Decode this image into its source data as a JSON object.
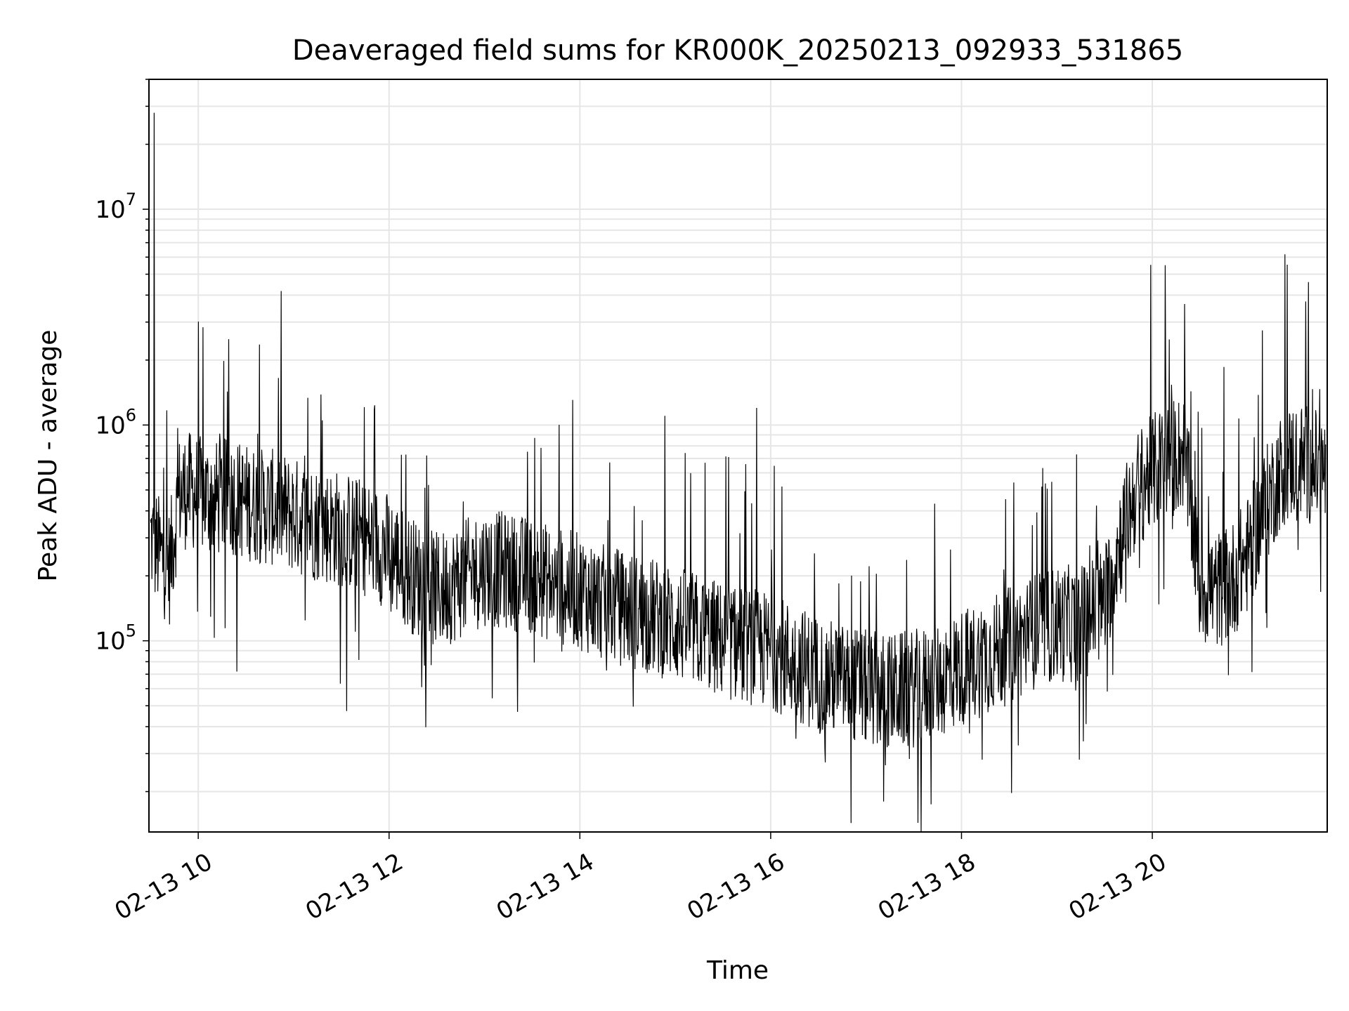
{
  "chart_data": {
    "type": "line",
    "title": "Deaveraged field sums for KR000K_20250213_092933_531865",
    "xlabel": "Time",
    "ylabel": "Peak ADU - average",
    "yscale": "log",
    "xlim": [
      "2025-02-13 09:29",
      "2025-02-13 21:50"
    ],
    "ylim": [
      13000,
      40000000
    ],
    "x_ticks": [
      {
        "value": "2025-02-13 10:00",
        "label": "02-13 10"
      },
      {
        "value": "2025-02-13 12:00",
        "label": "02-13 12"
      },
      {
        "value": "2025-02-13 14:00",
        "label": "02-13 14"
      },
      {
        "value": "2025-02-13 16:00",
        "label": "02-13 16"
      },
      {
        "value": "2025-02-13 18:00",
        "label": "02-13 18"
      },
      {
        "value": "2025-02-13 20:00",
        "label": "02-13 20"
      }
    ],
    "y_ticks": [
      {
        "value": 100000,
        "base": "10",
        "exp": "5"
      },
      {
        "value": 1000000,
        "base": "10",
        "exp": "6"
      },
      {
        "value": 10000000,
        "base": "10",
        "exp": "7"
      }
    ],
    "grid": true,
    "line_color": "#000000",
    "series": [
      {
        "name": "",
        "x": [
          "2025-02-13 09:30",
          "2025-02-13 09:36",
          "2025-02-13 09:42",
          "2025-02-13 09:48",
          "2025-02-13 09:54",
          "2025-02-13 10:00",
          "2025-02-13 10:10",
          "2025-02-13 10:20",
          "2025-02-13 10:30",
          "2025-02-13 10:40",
          "2025-02-13 10:50",
          "2025-02-13 11:00",
          "2025-02-13 11:15",
          "2025-02-13 11:30",
          "2025-02-13 11:45",
          "2025-02-13 12:00",
          "2025-02-13 12:15",
          "2025-02-13 12:30",
          "2025-02-13 12:45",
          "2025-02-13 13:00",
          "2025-02-13 13:15",
          "2025-02-13 13:30",
          "2025-02-13 13:45",
          "2025-02-13 14:00",
          "2025-02-13 14:15",
          "2025-02-13 14:30",
          "2025-02-13 14:45",
          "2025-02-13 15:00",
          "2025-02-13 15:15",
          "2025-02-13 15:30",
          "2025-02-13 15:45",
          "2025-02-13 16:00",
          "2025-02-13 16:15",
          "2025-02-13 16:30",
          "2025-02-13 16:45",
          "2025-02-13 17:00",
          "2025-02-13 17:15",
          "2025-02-13 17:30",
          "2025-02-13 17:45",
          "2025-02-13 18:00",
          "2025-02-13 18:15",
          "2025-02-13 18:30",
          "2025-02-13 18:45",
          "2025-02-13 19:00",
          "2025-02-13 19:15",
          "2025-02-13 19:30",
          "2025-02-13 19:40",
          "2025-02-13 19:50",
          "2025-02-13 20:00",
          "2025-02-13 20:10",
          "2025-02-13 20:20",
          "2025-02-13 20:30",
          "2025-02-13 20:40",
          "2025-02-13 20:50",
          "2025-02-13 21:00",
          "2025-02-13 21:10",
          "2025-02-13 21:20",
          "2025-02-13 21:30",
          "2025-02-13 21:40",
          "2025-02-13 21:49"
        ],
        "y": [
          300000,
          250000,
          220000,
          480000,
          500000,
          480000,
          450000,
          470000,
          440000,
          420000,
          410000,
          380000,
          350000,
          330000,
          300000,
          260000,
          200000,
          170000,
          190000,
          220000,
          210000,
          200000,
          180000,
          170000,
          150000,
          140000,
          130000,
          120000,
          110000,
          100000,
          95000,
          90000,
          80000,
          70000,
          65000,
          60000,
          58000,
          60000,
          65000,
          75000,
          85000,
          95000,
          110000,
          120000,
          120000,
          150000,
          300000,
          500000,
          600000,
          700000,
          750000,
          180000,
          170000,
          190000,
          250000,
          400000,
          600000,
          700000,
          650000,
          600000
        ],
        "spikes": [
          {
            "x": "2025-02-13 09:32",
            "y": 28000000
          },
          {
            "x": "2025-02-13 10:19",
            "y": 2500000
          },
          {
            "x": "2025-02-13 15:51",
            "y": 1200000
          },
          {
            "x": "2025-02-13 17:11",
            "y": 18000
          },
          {
            "x": "2025-02-13 20:08",
            "y": 5500000
          },
          {
            "x": "2025-02-13 21:38",
            "y": 4600000
          }
        ]
      }
    ]
  }
}
